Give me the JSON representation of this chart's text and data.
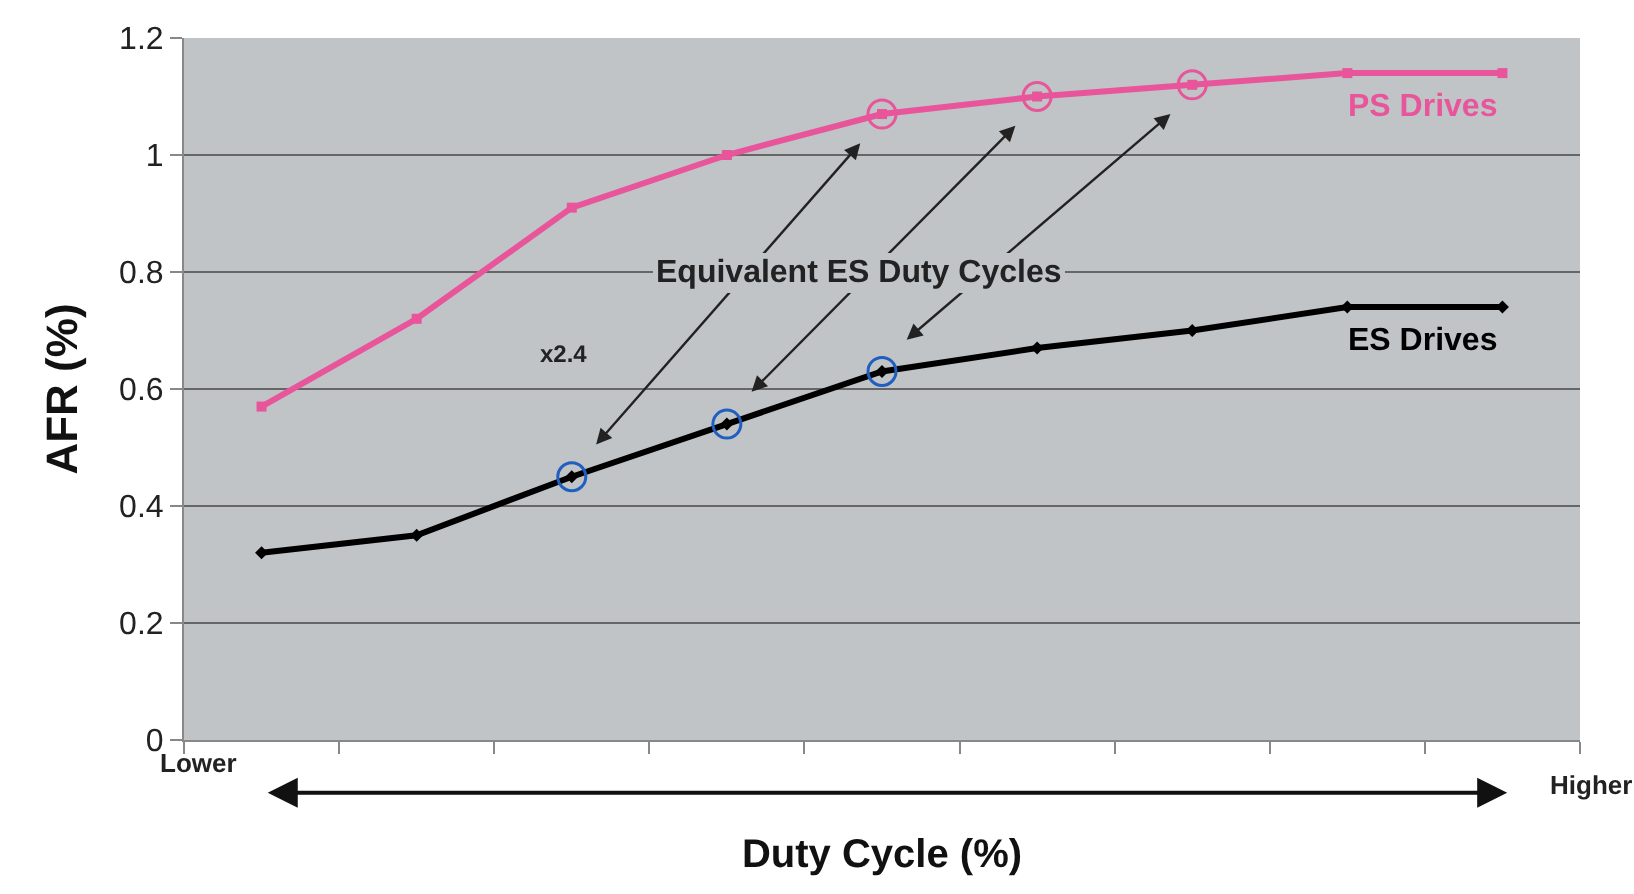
{
  "chart_data": {
    "type": "line",
    "xlabel": "Duty Cycle (%)",
    "ylabel": "AFR (%)",
    "categories": [
      null,
      null,
      null,
      null,
      null,
      null,
      null,
      null,
      null
    ],
    "series": [
      {
        "name": "PS Drives",
        "color": "#e8559a",
        "marker": "square",
        "values": [
          0.57,
          0.72,
          0.91,
          1.0,
          1.07,
          1.1,
          1.12,
          1.14,
          1.14
        ]
      },
      {
        "name": "ES Drives",
        "color": "#000000",
        "marker": "diamond",
        "values": [
          0.32,
          0.35,
          0.45,
          0.54,
          0.63,
          0.67,
          0.7,
          0.74,
          0.74
        ]
      },
      {
        "type": "scatter",
        "color": "#e8559a",
        "marker": "circle",
        "values": [
          null,
          null,
          null,
          null,
          1.07,
          1.1,
          1.12,
          null,
          null
        ]
      },
      {
        "type": "scatter",
        "color": "#1f5fbf",
        "marker": "circle",
        "values": [
          null,
          null,
          0.45,
          0.54,
          0.63,
          null,
          null,
          null,
          null
        ]
      }
    ],
    "ylim": [
      0,
      1.2
    ],
    "yticks": [
      0,
      0.2,
      0.4,
      0.6,
      0.8,
      1,
      1.2
    ],
    "grid": "y",
    "legend": false,
    "annotations": [
      "Equivalent ES Duty Cycles",
      "x2.4",
      "Lower",
      "Higher"
    ]
  }
}
